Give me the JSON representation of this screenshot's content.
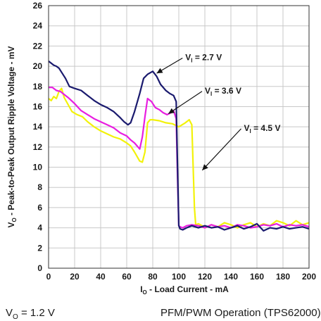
{
  "chart_data": {
    "type": "line",
    "xlabel_main": "I",
    "xlabel_sub": "O",
    "xlabel_rest": " - Load Current - mA",
    "ylabel_main": "V",
    "ylabel_sub": "O",
    "ylabel_rest": " - Peak-to-Peak Output Ripple Voltage - mV",
    "xlim": [
      0,
      200
    ],
    "ylim": [
      0,
      26
    ],
    "xticks": [
      "0",
      "20",
      "40",
      "60",
      "80",
      "100",
      "120",
      "140",
      "160",
      "180",
      "200"
    ],
    "yticks": [
      "0",
      "2",
      "4",
      "6",
      "8",
      "10",
      "12",
      "14",
      "16",
      "18",
      "20",
      "22",
      "24",
      "26"
    ],
    "grid": true,
    "series": [
      {
        "name": "VI = 2.7 V",
        "label_main": "V",
        "label_sub": "I",
        "label_rest": " = 2.7 V",
        "color": "#1a1a6e",
        "x": [
          0,
          2,
          4,
          6,
          8,
          10,
          13,
          16,
          20,
          25,
          30,
          35,
          40,
          45,
          50,
          55,
          58,
          61,
          63,
          66,
          70,
          73,
          76,
          80,
          83,
          86,
          90,
          93,
          96,
          98,
          99,
          100,
          101,
          103,
          106,
          110,
          115,
          120,
          125,
          130,
          135,
          140,
          145,
          150,
          155,
          160,
          165,
          170,
          175,
          180,
          185,
          190,
          195,
          200
        ],
        "y": [
          20.5,
          20.3,
          20.1,
          20.0,
          19.8,
          19.4,
          18.8,
          18.0,
          17.8,
          17.6,
          17.1,
          16.6,
          16.2,
          15.9,
          15.5,
          14.9,
          14.5,
          14.2,
          14.4,
          15.5,
          17.3,
          18.8,
          19.2,
          19.5,
          19.0,
          18.2,
          17.6,
          17.3,
          17.1,
          16.5,
          10.0,
          4.2,
          3.9,
          3.8,
          4.0,
          4.2,
          4.0,
          4.2,
          4.0,
          4.1,
          3.8,
          4.0,
          4.2,
          3.9,
          4.1,
          4.4,
          3.7,
          4.0,
          3.9,
          4.1,
          3.9,
          4.0,
          4.1,
          3.9
        ]
      },
      {
        "name": "VI = 3.6 V",
        "label_main": "V",
        "label_sub": "I",
        "label_rest": " = 3.6 V",
        "color": "#e81ee0",
        "x": [
          0,
          3,
          6,
          9,
          12,
          15,
          20,
          25,
          30,
          35,
          40,
          45,
          50,
          55,
          60,
          63,
          66,
          68,
          70,
          72,
          74,
          76,
          79,
          82,
          85,
          88,
          91,
          94,
          96,
          98,
          99,
          100,
          101,
          103,
          106,
          110,
          115,
          120,
          125,
          130,
          135,
          140,
          145,
          150,
          155,
          160,
          165,
          170,
          175,
          180,
          185,
          190,
          195,
          200
        ],
        "y": [
          17.9,
          17.9,
          17.6,
          17.5,
          17.2,
          16.9,
          16.3,
          15.6,
          15.2,
          14.8,
          14.5,
          14.2,
          13.9,
          13.4,
          13.1,
          12.7,
          12.4,
          12.1,
          11.8,
          13.0,
          15.0,
          16.8,
          16.5,
          15.9,
          15.7,
          15.4,
          15.2,
          15.4,
          15.6,
          14.8,
          9.0,
          4.2,
          4.1,
          4.0,
          4.2,
          4.3,
          4.2,
          4.0,
          4.3,
          4.1,
          4.2,
          4.0,
          4.3,
          4.2,
          4.0,
          4.1,
          4.3,
          4.2,
          4.4,
          4.1,
          4.3,
          4.2,
          4.3,
          4.1
        ]
      },
      {
        "name": "VI = 4.5 V",
        "label_main": "V",
        "label_sub": "I",
        "label_rest": " = 4.5 V",
        "color": "#f2f20a",
        "x": [
          0,
          2,
          4,
          6,
          8,
          10,
          12,
          15,
          18,
          22,
          26,
          30,
          35,
          40,
          45,
          50,
          55,
          60,
          63,
          66,
          70,
          72,
          74,
          76,
          78,
          80,
          85,
          90,
          95,
          100,
          105,
          108,
          110,
          111,
          112,
          113,
          115,
          118,
          120,
          125,
          130,
          135,
          140,
          145,
          150,
          155,
          160,
          165,
          170,
          175,
          180,
          185,
          190,
          195,
          200
        ],
        "y": [
          16.8,
          16.6,
          17.0,
          16.8,
          17.5,
          17.8,
          16.9,
          16.2,
          15.5,
          15.2,
          15.0,
          14.5,
          14.0,
          13.6,
          13.3,
          13.0,
          12.8,
          12.4,
          12.1,
          11.5,
          10.6,
          10.5,
          11.5,
          14.4,
          14.7,
          14.7,
          14.6,
          14.4,
          14.3,
          14.0,
          14.4,
          14.7,
          14.2,
          10.0,
          6.0,
          4.3,
          4.4,
          4.2,
          4.0,
          4.3,
          4.1,
          4.5,
          4.3,
          4.0,
          4.3,
          4.5,
          4.1,
          4.4,
          4.2,
          4.7,
          4.5,
          4.2,
          4.7,
          4.3,
          4.5
        ]
      }
    ],
    "annotations": [
      {
        "series": 0,
        "text_main": "V",
        "text_sub": "I",
        "text_rest": " = 2.7 V",
        "label_at": [
          105,
          20.6
        ],
        "arrow_to": [
          83,
          19.3
        ]
      },
      {
        "series": 1,
        "text_main": "V",
        "text_sub": "I",
        "text_rest": " = 3.6 V",
        "label_at": [
          120,
          17.3
        ],
        "arrow_to": [
          92,
          15.3
        ]
      },
      {
        "series": 2,
        "text_main": "V",
        "text_sub": "I",
        "text_rest": " = 4.5 V",
        "label_at": [
          150,
          13.6
        ],
        "arrow_to": [
          118,
          9.7
        ]
      }
    ]
  },
  "caption": {
    "left_main": "V",
    "left_sub": "O",
    "left_rest": " = 1.2 V",
    "right": "PFM/PWM Operation (TPS62000)"
  }
}
